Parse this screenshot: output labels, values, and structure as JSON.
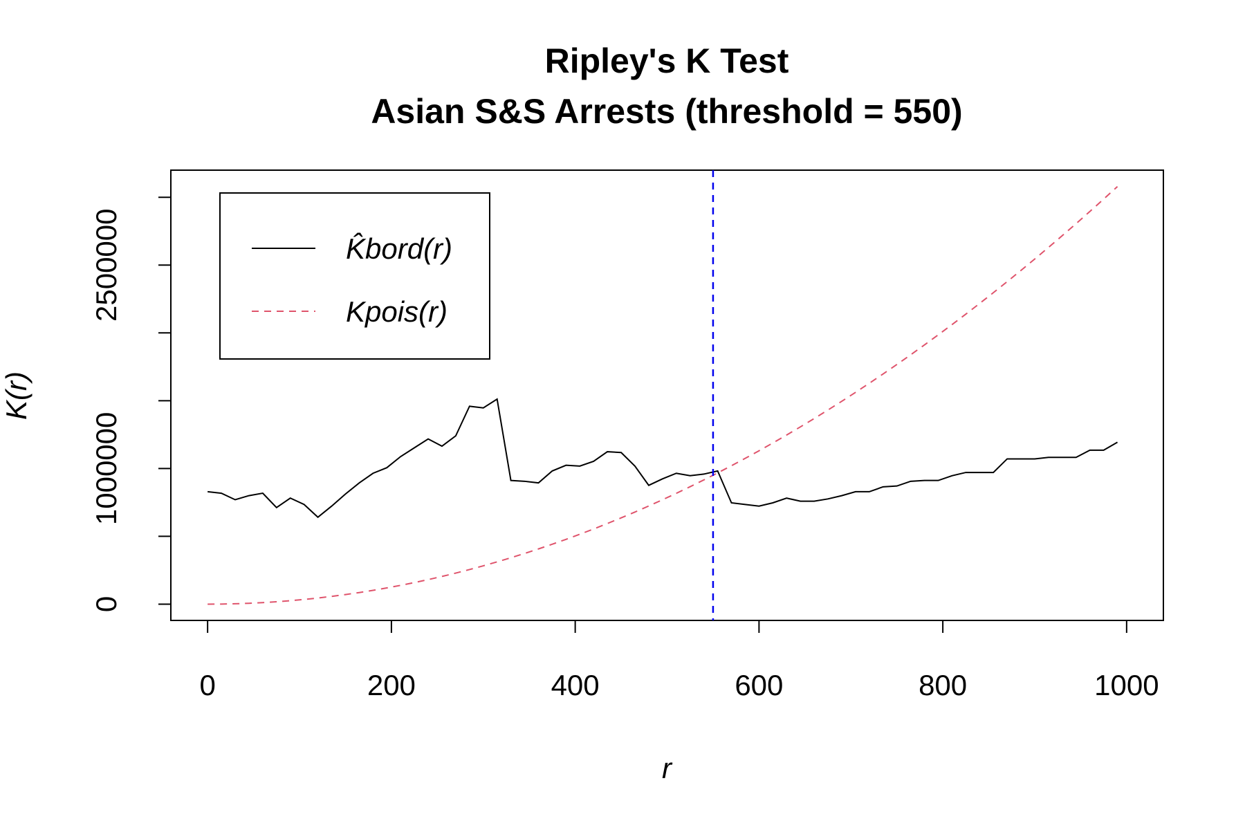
{
  "chart_data": {
    "type": "line",
    "title": "Ripley's K Test",
    "subtitle": "Asian S&S Arrests (threshold = 550)",
    "x_label": "r",
    "y_label": "K(r)",
    "x": [
      0,
      15,
      30,
      45,
      60,
      75,
      90,
      105,
      120,
      135,
      150,
      165,
      180,
      195,
      210,
      225,
      240,
      255,
      270,
      285,
      300,
      315,
      330,
      345,
      360,
      375,
      390,
      405,
      420,
      435,
      450,
      465,
      480,
      495,
      510,
      525,
      540,
      555,
      570,
      585,
      600,
      615,
      630,
      645,
      660,
      675,
      690,
      705,
      720,
      735,
      750,
      765,
      780,
      795,
      810,
      825,
      840,
      855,
      870,
      885,
      900,
      915,
      930,
      945,
      960,
      975,
      990
    ],
    "series": [
      {
        "name": "K̂bord(r)",
        "color": "#000000",
        "dash": false,
        "values": [
          829000,
          818000,
          770000,
          800000,
          818000,
          712000,
          782000,
          735000,
          641000,
          723000,
          812000,
          894000,
          965000,
          1006000,
          1088000,
          1153000,
          1218000,
          1165000,
          1241000,
          1459000,
          1447000,
          1512000,
          912000,
          906000,
          894000,
          982000,
          1024000,
          1018000,
          1053000,
          1124000,
          1118000,
          1018000,
          876000,
          924000,
          965000,
          947000,
          959000,
          982000,
          747000,
          735000,
          723000,
          747000,
          782000,
          759000,
          759000,
          776000,
          800000,
          829000,
          829000,
          865000,
          871000,
          906000,
          912000,
          912000,
          947000,
          971000,
          971000,
          971000,
          1071000,
          1071000,
          1071000,
          1082000,
          1082000,
          1082000,
          1135000,
          1135000,
          1194000
        ]
      },
      {
        "name": "Kpois(r)",
        "color": "#df536b",
        "dash": true,
        "values": [
          0,
          707,
          2827,
          6362,
          11310,
          17671,
          25447,
          34636,
          45239,
          57256,
          70686,
          85530,
          101788,
          119459,
          138544,
          159043,
          180956,
          204282,
          229022,
          255176,
          282743,
          311725,
          342119,
          373928,
          407150,
          441786,
          477836,
          515300,
          554177,
          594468,
          636173,
          679291,
          723823,
          769769,
          817128,
          865901,
          916088,
          967689,
          1020703,
          1075131,
          1130973,
          1188229,
          1246898,
          1306981,
          1368478,
          1431388,
          1495712,
          1561450,
          1628602,
          1697167,
          1767146,
          1838539,
          1911345,
          1985565,
          2061199,
          2138246,
          2216708,
          2296583,
          2377871,
          2460574,
          2544690,
          2630220,
          2717163,
          2805521,
          2895292,
          2986477,
          3079075
        ]
      }
    ],
    "vline": {
      "x": 550,
      "color": "#0000ee"
    },
    "xlim": [
      -40,
      1040
    ],
    "ylim": [
      -120000,
      3200000
    ],
    "xticks": [
      0,
      200,
      400,
      600,
      800,
      1000
    ],
    "yticks": [
      0,
      {
        "value": 500000,
        "label": null
      },
      1000000,
      {
        "value": 1500000,
        "label": null
      },
      {
        "value": 2000000,
        "label": null
      },
      2500000,
      {
        "value": 3000000,
        "label": null
      }
    ],
    "legend": "top-left"
  }
}
